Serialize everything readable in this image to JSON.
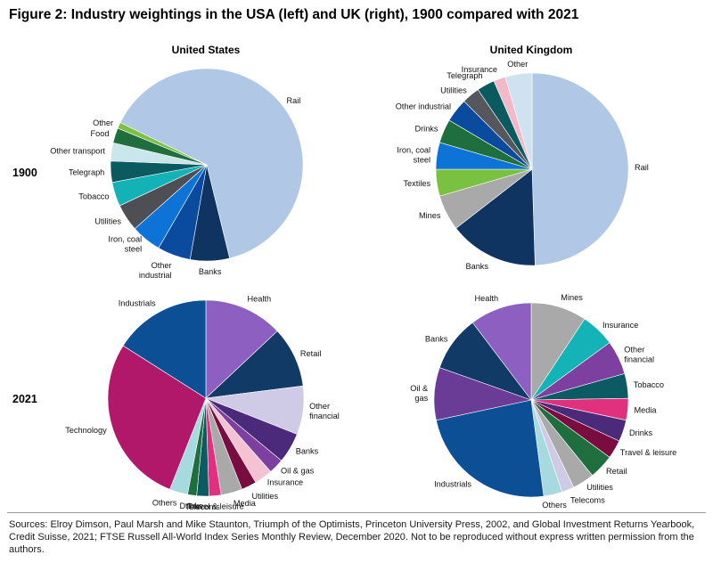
{
  "title": "Figure 2: Industry weightings in the USA (left) and UK (right), 1900 compared with 2021",
  "source": "Sources: Elroy Dimson, Paul Marsh and Mike Staunton, Triumph of the Optimists, Princeton University Press, 2002, and Global Investment Returns Yearbook, Credit Suisse, 2021; FTSE Russell All-World Index Series Monthly Review, December 2020. Not to be reproduced without express written permission from the authors.",
  "column_headers": [
    "United States",
    "United Kingdom"
  ],
  "row_labels": [
    "1900",
    "2021"
  ],
  "chart_data": [
    {
      "type": "pie",
      "panel": "United States",
      "year": "1900",
      "slices": [
        {
          "label": [
            "Rail"
          ],
          "value": 63.0,
          "color": "#b0c8e6"
        },
        {
          "label": [
            "Banks"
          ],
          "value": 6.5,
          "color": "#0f3461"
        },
        {
          "label": [
            "Other",
            "industrial"
          ],
          "value": 5.5,
          "color": "#0a4ba0"
        },
        {
          "label": [
            "Iron, coal",
            "steel"
          ],
          "value": 5.0,
          "color": "#0d73d6"
        },
        {
          "label": [
            "Utilities"
          ],
          "value": 4.5,
          "color": "#4e4f54"
        },
        {
          "label": [
            "Tobacco"
          ],
          "value": 4.0,
          "color": "#12b2b6"
        },
        {
          "label": [
            "Telegraph"
          ],
          "value": 3.5,
          "color": "#0a5a60"
        },
        {
          "label": [
            "Other transport"
          ],
          "value": 3.0,
          "color": "#c9e6ea"
        },
        {
          "label": [
            "Food"
          ],
          "value": 2.5,
          "color": "#1f6e3e"
        },
        {
          "label": [
            "Other"
          ],
          "value": 1.0,
          "color": "#7ec043"
        }
      ]
    },
    {
      "type": "pie",
      "panel": "United Kingdom",
      "year": "1900",
      "slices": [
        {
          "label": [
            "Rail"
          ],
          "value": 49.5,
          "color": "#b0c8e6"
        },
        {
          "label": [
            "Banks"
          ],
          "value": 15.0,
          "color": "#0f3461"
        },
        {
          "label": [
            "Mines"
          ],
          "value": 6.0,
          "color": "#a9a9a9"
        },
        {
          "label": [
            "Textiles"
          ],
          "value": 4.5,
          "color": "#7ac142"
        },
        {
          "label": [
            "Iron, coal",
            "steel"
          ],
          "value": 4.5,
          "color": "#0d73d6"
        },
        {
          "label": [
            "Drinks"
          ],
          "value": 4.0,
          "color": "#1f6e3e"
        },
        {
          "label": [
            "Other industrial"
          ],
          "value": 4.0,
          "color": "#0a4ba0"
        },
        {
          "label": [
            "Utilities"
          ],
          "value": 3.0,
          "color": "#56575c"
        },
        {
          "label": [
            "Telegraph"
          ],
          "value": 3.0,
          "color": "#0a5a60"
        },
        {
          "label": [
            "Insurance"
          ],
          "value": 2.0,
          "color": "#f3b9c9"
        },
        {
          "label": [
            "Other"
          ],
          "value": 4.5,
          "color": "#cfe2ef"
        }
      ]
    },
    {
      "type": "pie",
      "panel": "United States",
      "year": "2021",
      "slices": [
        {
          "label": [
            "Health"
          ],
          "value": 13.0,
          "color": "#8c5fc0"
        },
        {
          "label": [
            "Retail"
          ],
          "value": 10.0,
          "color": "#123a66"
        },
        {
          "label": [
            "Other",
            "financial"
          ],
          "value": 8.0,
          "color": "#cfcbe6"
        },
        {
          "label": [
            "Banks"
          ],
          "value": 5.0,
          "color": "#4b2a7b"
        },
        {
          "label": [
            "Oil & gas"
          ],
          "value": 2.5,
          "color": "#7d3fa0"
        },
        {
          "label": [
            "Insurance"
          ],
          "value": 3.0,
          "color": "#f4c2d2"
        },
        {
          "label": [
            "Utilities"
          ],
          "value": 2.5,
          "color": "#7a0d3f"
        },
        {
          "label": [
            "Media"
          ],
          "value": 3.5,
          "color": "#a9a9a9"
        },
        {
          "label": [
            "Travel & leisure"
          ],
          "value": 2.0,
          "color": "#e0307e"
        },
        {
          "label": [
            "Telecoms"
          ],
          "value": 2.0,
          "color": "#0c5a64"
        },
        {
          "label": [
            "Drinks"
          ],
          "value": 1.5,
          "color": "#1f6e3e"
        },
        {
          "label": [
            "Others"
          ],
          "value": 3.0,
          "color": "#a6d9e0"
        },
        {
          "label": [
            "Technology"
          ],
          "value": 28.0,
          "color": "#b1186a"
        },
        {
          "label": [
            "Industrials"
          ],
          "value": 16.0,
          "color": "#0c4f95"
        }
      ]
    },
    {
      "type": "pie",
      "panel": "United Kingdom",
      "year": "2021",
      "slices": [
        {
          "label": [
            "Mines"
          ],
          "value": 9.0,
          "color": "#a9a9a9"
        },
        {
          "label": [
            "Insurance"
          ],
          "value": 5.5,
          "color": "#13b3b8"
        },
        {
          "label": [
            "Other",
            "financial"
          ],
          "value": 5.5,
          "color": "#7d3fa0"
        },
        {
          "label": [
            "Tobacco"
          ],
          "value": 4.0,
          "color": "#0c5a64"
        },
        {
          "label": [
            "Media"
          ],
          "value": 3.5,
          "color": "#e0307e"
        },
        {
          "label": [
            "Drinks"
          ],
          "value": 3.5,
          "color": "#4b2a7b"
        },
        {
          "label": [
            "Travel & leisure"
          ],
          "value": 3.0,
          "color": "#7a0d3f"
        },
        {
          "label": [
            "Retail"
          ],
          "value": 4.0,
          "color": "#1f6e3e"
        },
        {
          "label": [
            "Utilities"
          ],
          "value": 3.5,
          "color": "#a9a9a9"
        },
        {
          "label": [
            "Telecoms"
          ],
          "value": 2.0,
          "color": "#cfcbe6"
        },
        {
          "label": [
            "Others"
          ],
          "value": 3.0,
          "color": "#a6d9e0"
        },
        {
          "label": [
            "Industrials"
          ],
          "value": 23.0,
          "color": "#0c4f95"
        },
        {
          "label": [
            "Oil &",
            "gas"
          ],
          "value": 8.5,
          "color": "#6a3c96"
        },
        {
          "label": [
            "Banks"
          ],
          "value": 9.0,
          "color": "#123a66"
        },
        {
          "label": [
            "Health"
          ],
          "value": 10.0,
          "color": "#8c5fc0"
        }
      ]
    }
  ]
}
